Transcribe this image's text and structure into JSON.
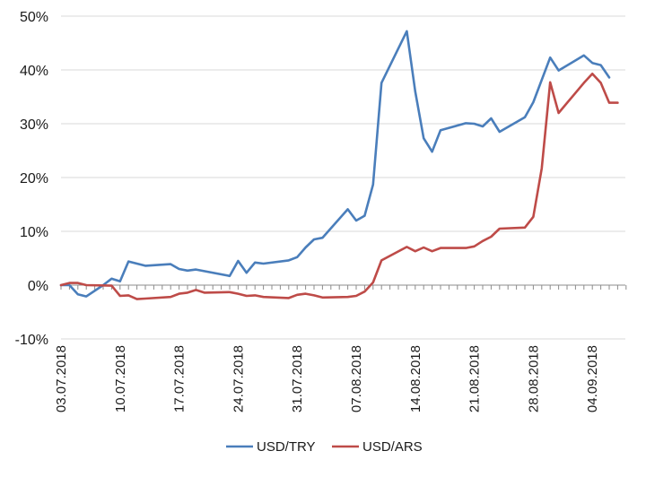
{
  "chart_data": {
    "type": "line",
    "title": "",
    "xlabel": "",
    "ylabel": "",
    "ylim": [
      -10,
      50
    ],
    "y_ticks": [
      "-10%",
      "0%",
      "10%",
      "20%",
      "30%",
      "40%",
      "50%"
    ],
    "y_tick_values": [
      -10,
      0,
      10,
      20,
      30,
      40,
      50
    ],
    "x_range": [
      "2018-07-03",
      "2018-09-07"
    ],
    "x_ticks": [
      "03.07.2018",
      "10.07.2018",
      "17.07.2018",
      "24.07.2018",
      "31.07.2018",
      "07.08.2018",
      "14.08.2018",
      "21.08.2018",
      "28.08.2018",
      "04.09.2018"
    ],
    "x_tick_dates": [
      "2018-07-03",
      "2018-07-10",
      "2018-07-17",
      "2018-07-24",
      "2018-07-31",
      "2018-08-07",
      "2018-08-14",
      "2018-08-21",
      "2018-08-28",
      "2018-09-04"
    ],
    "grid": "horizontal",
    "legend_position": "bottom",
    "series": [
      {
        "name": "USD/TRY",
        "color": "#4a7ebb",
        "points": [
          [
            "2018-07-03",
            0.0
          ],
          [
            "2018-07-04",
            0.0
          ],
          [
            "2018-07-05",
            -1.7
          ],
          [
            "2018-07-06",
            -2.1
          ],
          [
            "2018-07-08",
            0.0
          ],
          [
            "2018-07-09",
            1.2
          ],
          [
            "2018-07-10",
            0.7
          ],
          [
            "2018-07-11",
            4.4
          ],
          [
            "2018-07-13",
            3.6
          ],
          [
            "2018-07-16",
            3.9
          ],
          [
            "2018-07-17",
            3.0
          ],
          [
            "2018-07-18",
            2.7
          ],
          [
            "2018-07-19",
            2.9
          ],
          [
            "2018-07-23",
            1.7
          ],
          [
            "2018-07-24",
            4.5
          ],
          [
            "2018-07-25",
            2.3
          ],
          [
            "2018-07-26",
            4.2
          ],
          [
            "2018-07-27",
            4.0
          ],
          [
            "2018-07-30",
            4.6
          ],
          [
            "2018-07-31",
            5.2
          ],
          [
            "2018-08-01",
            7.0
          ],
          [
            "2018-08-02",
            8.5
          ],
          [
            "2018-08-03",
            8.8
          ],
          [
            "2018-08-06",
            14.1
          ],
          [
            "2018-08-07",
            12.0
          ],
          [
            "2018-08-08",
            12.9
          ],
          [
            "2018-08-09",
            18.7
          ],
          [
            "2018-08-10",
            37.6
          ],
          [
            "2018-08-13",
            47.2
          ],
          [
            "2018-08-14",
            36.0
          ],
          [
            "2018-08-15",
            27.3
          ],
          [
            "2018-08-16",
            24.8
          ],
          [
            "2018-08-17",
            28.8
          ],
          [
            "2018-08-20",
            30.1
          ],
          [
            "2018-08-21",
            30.0
          ],
          [
            "2018-08-22",
            29.5
          ],
          [
            "2018-08-23",
            31.0
          ],
          [
            "2018-08-24",
            28.5
          ],
          [
            "2018-08-27",
            31.2
          ],
          [
            "2018-08-28",
            34.0
          ],
          [
            "2018-08-30",
            42.3
          ],
          [
            "2018-08-31",
            39.9
          ],
          [
            "2018-09-03",
            42.7
          ],
          [
            "2018-09-04",
            41.3
          ],
          [
            "2018-09-05",
            40.9
          ],
          [
            "2018-09-06",
            38.6
          ]
        ]
      },
      {
        "name": "USD/ARS",
        "color": "#be4b48",
        "points": [
          [
            "2018-07-03",
            0.0
          ],
          [
            "2018-07-04",
            0.4
          ],
          [
            "2018-07-05",
            0.4
          ],
          [
            "2018-07-06",
            0.0
          ],
          [
            "2018-07-09",
            -0.1
          ],
          [
            "2018-07-10",
            -2.0
          ],
          [
            "2018-07-11",
            -1.9
          ],
          [
            "2018-07-12",
            -2.6
          ],
          [
            "2018-07-13",
            -2.5
          ],
          [
            "2018-07-16",
            -2.2
          ],
          [
            "2018-07-17",
            -1.6
          ],
          [
            "2018-07-18",
            -1.4
          ],
          [
            "2018-07-19",
            -0.9
          ],
          [
            "2018-07-20",
            -1.4
          ],
          [
            "2018-07-23",
            -1.3
          ],
          [
            "2018-07-24",
            -1.6
          ],
          [
            "2018-07-25",
            -2.0
          ],
          [
            "2018-07-26",
            -1.9
          ],
          [
            "2018-07-27",
            -2.2
          ],
          [
            "2018-07-30",
            -2.4
          ],
          [
            "2018-07-31",
            -1.8
          ],
          [
            "2018-08-01",
            -1.6
          ],
          [
            "2018-08-02",
            -1.9
          ],
          [
            "2018-08-03",
            -2.3
          ],
          [
            "2018-08-06",
            -2.2
          ],
          [
            "2018-08-07",
            -2.0
          ],
          [
            "2018-08-08",
            -1.2
          ],
          [
            "2018-08-09",
            0.5
          ],
          [
            "2018-08-10",
            4.6
          ],
          [
            "2018-08-13",
            7.1
          ],
          [
            "2018-08-14",
            6.3
          ],
          [
            "2018-08-15",
            7.0
          ],
          [
            "2018-08-16",
            6.3
          ],
          [
            "2018-08-17",
            6.9
          ],
          [
            "2018-08-20",
            6.9
          ],
          [
            "2018-08-21",
            7.2
          ],
          [
            "2018-08-22",
            8.2
          ],
          [
            "2018-08-23",
            9.0
          ],
          [
            "2018-08-24",
            10.5
          ],
          [
            "2018-08-27",
            10.7
          ],
          [
            "2018-08-28",
            12.7
          ],
          [
            "2018-08-29",
            21.7
          ],
          [
            "2018-08-30",
            37.7
          ],
          [
            "2018-08-31",
            32.0
          ],
          [
            "2018-09-03",
            37.6
          ],
          [
            "2018-09-04",
            39.3
          ],
          [
            "2018-09-05",
            37.6
          ],
          [
            "2018-09-06",
            33.9
          ],
          [
            "2018-09-07",
            33.9
          ]
        ]
      }
    ]
  }
}
